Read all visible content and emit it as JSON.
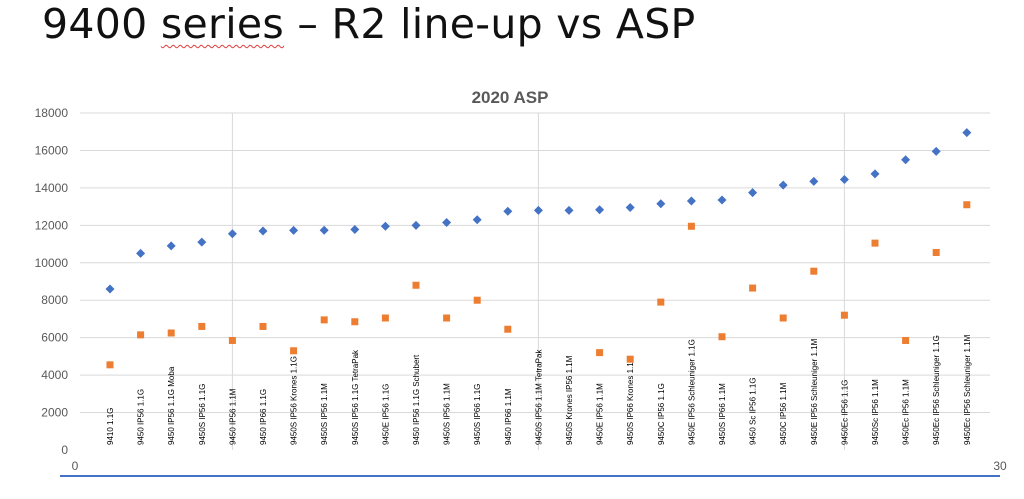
{
  "slide": {
    "title_pre": "9400 ",
    "title_squiggle": "series",
    "title_post": " – R2 line-up vs ASP"
  },
  "chart_data": {
    "type": "scatter",
    "title": "2020 ASP",
    "ylim": [
      0,
      18000
    ],
    "yticks": [
      0,
      2000,
      4000,
      6000,
      8000,
      10000,
      12000,
      14000,
      16000,
      18000
    ],
    "xlim": [
      0,
      30
    ],
    "xticks": [
      0,
      30
    ],
    "legend": "none",
    "colors": {
      "blue": "#4472c4",
      "orange": "#ed7d31",
      "axis": "#4472c4",
      "grid": "#d9d9d9"
    },
    "labels": [
      "9410 1.1G",
      "9450 IP56 1.1G",
      "9450 IP56 1.1G Moba",
      "9450S IP56 1.1G",
      "9450 IP56 1.1M",
      "9450 IP66 1.1G",
      "9450S IP56 Krones 1.1G",
      "9450S IP56 1.1M",
      "9450S IP56 1.1G TetraPak",
      "9450E IP56 1.1G",
      "9450 IP56 1.1G Schubert",
      "9450S IP56 1.1M",
      "9450S IP66 1.1G",
      "9450 IP66 1.1M",
      "9450S IP56 1.1M TetraPak",
      "9450S Krones IP56 1.1M",
      "9450E IP56 1.1M",
      "9450S IP66 Krones 1.1G",
      "9450C IP56 1.1G",
      "9450E IP56 Schleuniger 1.1G",
      "9450S IP66 1.1M",
      "9450 Sc IP56 1.1G",
      "9450C IP56 1.1M",
      "9450E IP56 Schleuniger 1.1M",
      "9450Ec IP56 1.1G",
      "9450Sc IP56 1.1M",
      "9450Ec IP56 1.1M",
      "9450Ec IP56 Schleuniger 1.1G",
      "9450Ec IP56 Schleuniger 1.1M"
    ],
    "series": [
      {
        "color": "#4472c4",
        "marker": "diamond",
        "values": [
          8600,
          10500,
          10900,
          11100,
          11550,
          11700,
          11730,
          11740,
          11780,
          11950,
          12000,
          12150,
          12300,
          12750,
          12800,
          12800,
          12830,
          12950,
          13150,
          13300,
          13350,
          13750,
          14150,
          14350,
          14450,
          14750,
          15500,
          15950,
          16950
        ]
      },
      {
        "color": "#ed7d31",
        "marker": "square",
        "values": [
          4550,
          6150,
          6250,
          6600,
          5850,
          6600,
          5300,
          6950,
          6850,
          7050,
          8800,
          7050,
          8000,
          6450,
          null,
          null,
          5200,
          4850,
          7900,
          11950,
          6050,
          8650,
          7050,
          9550,
          7200,
          11050,
          5850,
          10550,
          13100
        ]
      }
    ]
  }
}
